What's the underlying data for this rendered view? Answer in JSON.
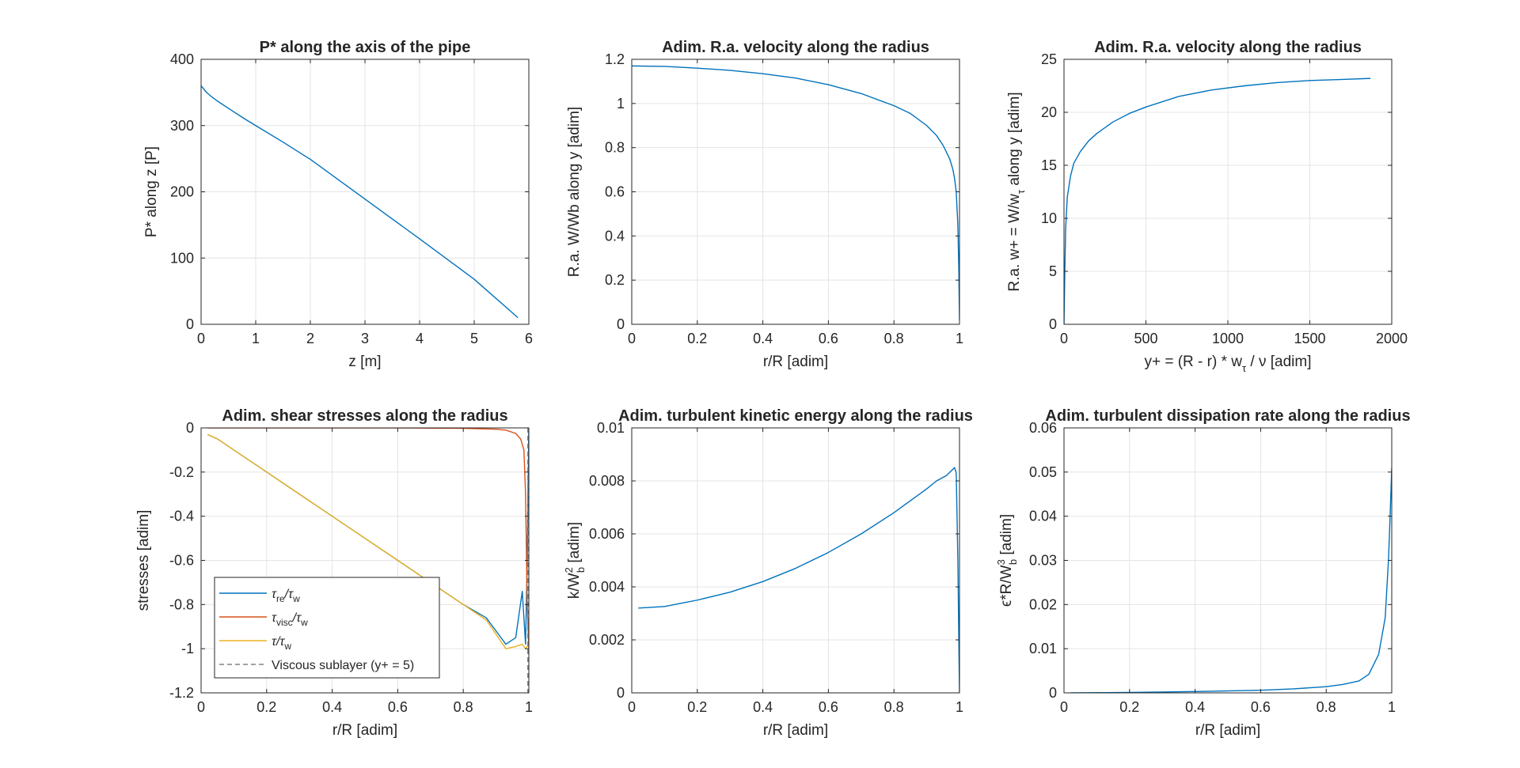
{
  "colors": {
    "blue": "#0072BD",
    "orange": "#D95319",
    "yellow": "#EDB120",
    "grid": "#e4e4e4",
    "axis": "#262626",
    "dash": "#808080"
  },
  "chart_data": [
    {
      "id": "p1",
      "type": "line",
      "title": "P* along the axis of the pipe",
      "xlabel": "z [m]",
      "ylabel": "P* along z [P]",
      "xlim": [
        0,
        6
      ],
      "ylim": [
        0,
        400
      ],
      "xticks": [
        0,
        1,
        2,
        3,
        4,
        5,
        6
      ],
      "xticklabels": [
        "0",
        "1",
        "2",
        "3",
        "4",
        "5",
        "6"
      ],
      "yticks": [
        0,
        100,
        200,
        300,
        400
      ],
      "yticklabels": [
        "0",
        "100",
        "200",
        "300",
        "400"
      ],
      "grid": true,
      "series": [
        {
          "color": "blue",
          "x": [
            0,
            0.1,
            0.2,
            0.3,
            0.5,
            0.8,
            1.0,
            1.5,
            2.0,
            3.0,
            4.0,
            5.0,
            5.8
          ],
          "y": [
            360,
            350,
            343,
            337,
            326,
            310,
            300,
            275,
            249,
            189,
            129,
            68,
            10
          ]
        }
      ]
    },
    {
      "id": "p2",
      "type": "line",
      "title": "Adim. R.a. velocity along the radius",
      "xlabel": "r/R [adim]",
      "ylabel": "R.a. W/Wb along y [adim]",
      "xlim": [
        0,
        1
      ],
      "ylim": [
        0,
        1.2
      ],
      "xticks": [
        0,
        0.2,
        0.4,
        0.6,
        0.8,
        1
      ],
      "xticklabels": [
        "0",
        "0.2",
        "0.4",
        "0.6",
        "0.8",
        "1"
      ],
      "yticks": [
        0,
        0.2,
        0.4,
        0.6,
        0.8,
        1,
        1.2
      ],
      "yticklabels": [
        "0",
        "0.2",
        "0.4",
        "0.6",
        "0.8",
        "1",
        "1.2"
      ],
      "grid": true,
      "series": [
        {
          "color": "blue",
          "x": [
            0,
            0.1,
            0.2,
            0.3,
            0.4,
            0.5,
            0.6,
            0.7,
            0.8,
            0.85,
            0.9,
            0.93,
            0.95,
            0.97,
            0.98,
            0.985,
            0.99,
            0.995,
            0.998,
            1.0
          ],
          "y": [
            1.17,
            1.168,
            1.16,
            1.15,
            1.135,
            1.115,
            1.085,
            1.045,
            0.99,
            0.955,
            0.9,
            0.855,
            0.81,
            0.75,
            0.7,
            0.66,
            0.6,
            0.45,
            0.25,
            0.02
          ]
        }
      ]
    },
    {
      "id": "p3",
      "type": "line",
      "title": "Adim. R.a. velocity along the radius",
      "xlabel": "y+ = (R - r) * w_τ / ν [adim]",
      "ylabel": "R.a. w+ = W/w_τ along y [adim]",
      "xlim": [
        0,
        2000
      ],
      "ylim": [
        0,
        25
      ],
      "xticks": [
        0,
        500,
        1000,
        1500,
        2000
      ],
      "xticklabels": [
        "0",
        "500",
        "1000",
        "1500",
        "2000"
      ],
      "yticks": [
        0,
        5,
        10,
        15,
        20,
        25
      ],
      "yticklabels": [
        "0",
        "5",
        "10",
        "15",
        "20",
        "25"
      ],
      "grid": true,
      "series": [
        {
          "color": "blue",
          "x": [
            0,
            2,
            5,
            10,
            20,
            40,
            60,
            100,
            150,
            200,
            300,
            400,
            500,
            700,
            900,
            1100,
            1300,
            1500,
            1700,
            1870
          ],
          "y": [
            0,
            2,
            5,
            9,
            12,
            14,
            15.2,
            16.3,
            17.3,
            18.0,
            19.1,
            19.9,
            20.5,
            21.5,
            22.1,
            22.5,
            22.8,
            23.0,
            23.1,
            23.2
          ]
        }
      ]
    },
    {
      "id": "p4",
      "type": "line",
      "title": "Adim. shear stresses along the radius",
      "xlabel": "r/R [adim]",
      "ylabel": "stresses [adim]",
      "xlim": [
        0,
        1
      ],
      "ylim": [
        -1.2,
        0
      ],
      "xticks": [
        0,
        0.2,
        0.4,
        0.6,
        0.8,
        1
      ],
      "xticklabels": [
        "0",
        "0.2",
        "0.4",
        "0.6",
        "0.8",
        "1"
      ],
      "yticks": [
        -1.2,
        -1,
        -0.8,
        -0.6,
        -0.4,
        -0.2,
        0
      ],
      "yticklabels": [
        "-1.2",
        "-1",
        "-0.8",
        "-0.6",
        "-0.4",
        "-0.2",
        "0"
      ],
      "grid": true,
      "legend": {
        "placement": "bottom-left",
        "entries": [
          {
            "base": "τ",
            "sub": "re",
            "mid": "/τ",
            "sub2": "w"
          },
          {
            "base": "τ",
            "sub": "visc",
            "mid": "/τ",
            "sub2": "w"
          },
          {
            "base": "τ/τ",
            "sub": "w",
            "mid": "",
            "sub2": ""
          },
          {
            "base": "Viscous sublayer (y+ = 5)",
            "sub": "",
            "mid": "",
            "sub2": ""
          }
        ]
      },
      "series": [
        {
          "color": "blue",
          "x": [
            0.02,
            0.05,
            0.1,
            0.2,
            0.3,
            0.4,
            0.5,
            0.6,
            0.7,
            0.8,
            0.87,
            0.93,
            0.96,
            0.98,
            0.99,
            0.995,
            1.0
          ],
          "y": [
            -0.03,
            -0.05,
            -0.1,
            -0.2,
            -0.3,
            -0.4,
            -0.5,
            -0.6,
            -0.7,
            -0.8,
            -0.86,
            -0.98,
            -0.95,
            -0.74,
            -0.98,
            -0.6,
            0
          ]
        },
        {
          "color": "orange",
          "x": [
            0.02,
            0.2,
            0.4,
            0.6,
            0.8,
            0.9,
            0.93,
            0.96,
            0.975,
            0.985,
            0.99,
            0.995,
            1.0
          ],
          "y": [
            0,
            0,
            0,
            0,
            -0.002,
            -0.006,
            -0.01,
            -0.025,
            -0.05,
            -0.1,
            -0.3,
            -0.8,
            -1.0
          ]
        },
        {
          "color": "yellow",
          "x": [
            0.02,
            0.05,
            0.1,
            0.2,
            0.3,
            0.4,
            0.5,
            0.6,
            0.7,
            0.8,
            0.87,
            0.93,
            0.96,
            0.98,
            0.99,
            1.0
          ],
          "y": [
            -0.03,
            -0.05,
            -0.1,
            -0.2,
            -0.3,
            -0.4,
            -0.5,
            -0.6,
            -0.7,
            -0.8,
            -0.87,
            -1.0,
            -0.99,
            -0.98,
            -1.0,
            -0.98
          ]
        }
      ],
      "vline": {
        "x": 0.997,
        "color": "dash"
      }
    },
    {
      "id": "p5",
      "type": "line",
      "title": "Adim. turbulent kinetic energy along the radius",
      "xlabel": "r/R [adim]",
      "ylabel": "k/W_b^2 [adim]",
      "xlim": [
        0,
        1
      ],
      "ylim": [
        0,
        0.01
      ],
      "xticks": [
        0,
        0.2,
        0.4,
        0.6,
        0.8,
        1
      ],
      "xticklabels": [
        "0",
        "0.2",
        "0.4",
        "0.6",
        "0.8",
        "1"
      ],
      "yticks": [
        0,
        0.002,
        0.004,
        0.006,
        0.008,
        0.01
      ],
      "yticklabels": [
        "0",
        "0.002",
        "0.004",
        "0.006",
        "0.008",
        "0.01"
      ],
      "grid": true,
      "series": [
        {
          "color": "blue",
          "x": [
            0.02,
            0.1,
            0.2,
            0.3,
            0.4,
            0.5,
            0.6,
            0.7,
            0.8,
            0.9,
            0.93,
            0.96,
            0.985,
            0.99,
            0.995,
            1.0
          ],
          "y": [
            0.0032,
            0.00326,
            0.0035,
            0.0038,
            0.0042,
            0.0047,
            0.0053,
            0.006,
            0.0068,
            0.0077,
            0.008,
            0.0082,
            0.0085,
            0.0083,
            0.005,
            0
          ]
        }
      ]
    },
    {
      "id": "p6",
      "type": "line",
      "title": "Adim. turbulent dissipation rate along the radius",
      "xlabel": "r/R [adim]",
      "ylabel": "ε*R/W_b^3 [adim]",
      "xlim": [
        0,
        1
      ],
      "ylim": [
        0,
        0.06
      ],
      "xticks": [
        0,
        0.2,
        0.4,
        0.6,
        0.8,
        1
      ],
      "xticklabels": [
        "0",
        "0.2",
        "0.4",
        "0.6",
        "0.8",
        "1"
      ],
      "yticks": [
        0,
        0.01,
        0.02,
        0.03,
        0.04,
        0.05,
        0.06
      ],
      "yticklabels": [
        "0",
        "0.01",
        "0.02",
        "0.03",
        "0.04",
        "0.05",
        "0.06"
      ],
      "grid": true,
      "series": [
        {
          "color": "blue",
          "x": [
            0.02,
            0.2,
            0.4,
            0.6,
            0.7,
            0.8,
            0.85,
            0.9,
            0.93,
            0.96,
            0.98,
            0.99,
            0.995,
            1.0
          ],
          "y": [
            0,
            0.0001,
            0.0003,
            0.0006,
            0.0009,
            0.0014,
            0.0019,
            0.0027,
            0.0042,
            0.0087,
            0.017,
            0.03,
            0.04,
            0.051
          ]
        }
      ]
    }
  ]
}
